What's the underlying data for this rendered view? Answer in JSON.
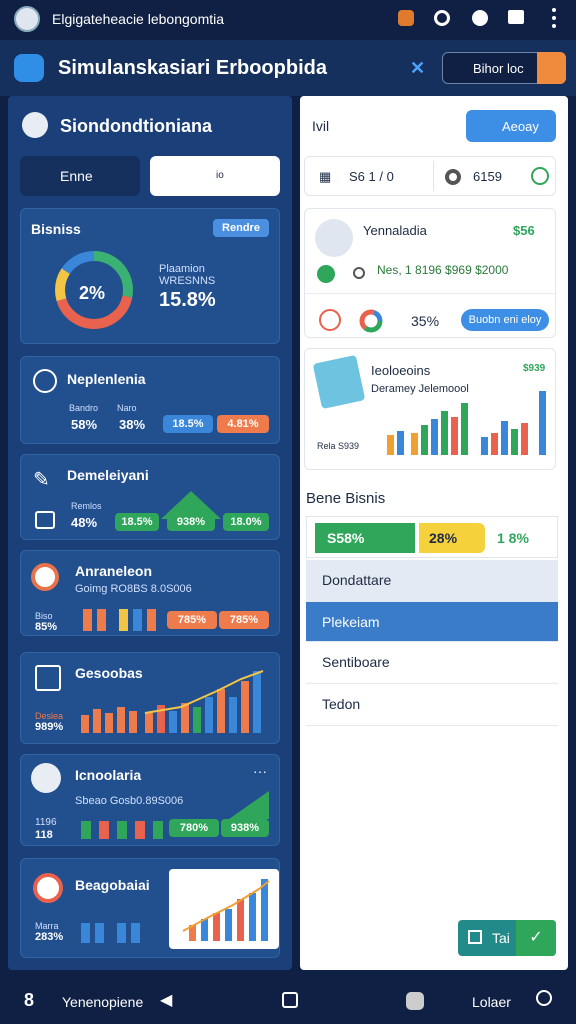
{
  "status_bar": {
    "title": "Elgigateheacie lebongomtia"
  },
  "header": {
    "title": "Simulanskasiari Erboopbida",
    "search": "Bihor loc"
  },
  "left_panel": {
    "title": "Siondondtioniana",
    "tabs": [
      "Enne",
      "io"
    ]
  },
  "cards": [
    {
      "title": "Bisniss",
      "badge": "Rendre",
      "center": "2%",
      "label1": "Plaamion",
      "label2": "WRESNNS",
      "value": "15.8%"
    },
    {
      "title": "Neplenlenia",
      "labels": [
        "Bandro",
        "Naro"
      ],
      "values": [
        "58%",
        "38%",
        "18.5%",
        "4.81%"
      ]
    },
    {
      "title": "Demeleiyani",
      "labels": [
        "Remlos"
      ],
      "values": [
        "48%",
        "18.5%",
        "938%",
        "18.0%"
      ]
    },
    {
      "title": "Anraneleon",
      "subtitle": "Goimg RO8BS 8.0S006",
      "labels": [
        "Biso"
      ],
      "values": [
        "85%",
        "785%",
        "785%"
      ]
    },
    {
      "title": "Gesoobas",
      "labels": [
        "Deslea"
      ],
      "values": [
        "989%"
      ]
    },
    {
      "title": "Icnoolaria",
      "subtitle": "Sbeao Gosb0.89S006",
      "labels": [
        "1196"
      ],
      "values": [
        "118",
        "780%",
        "938%"
      ]
    },
    {
      "title": "Beagobaiai",
      "labels": [
        "Marra"
      ],
      "values": [
        "283%"
      ]
    }
  ],
  "right_panel": {
    "title": "Ivil",
    "button": "Aeoay",
    "stats": [
      "S6 1 / 0",
      "6159"
    ],
    "profile": {
      "name": "Yennaladia",
      "amount": "$56",
      "line": "Nes, 1 8196 $969 $2000",
      "percent": "35%",
      "button": "Buobn eni eloy"
    },
    "chart": {
      "title": "Ieoloeoins",
      "subtitle": "Deramey Jelemoool",
      "amount": "$939",
      "label": "Rela S939"
    },
    "section": "Bene Bisnis",
    "progress": [
      "S58%",
      "28%",
      "1 8%"
    ],
    "list": [
      "Dondattare",
      "Plekeiam",
      "Sentiboare",
      "Tedon"
    ],
    "action": "Tai"
  },
  "bottom_nav": {
    "left": "Yenenopiene",
    "right": "Lolaer"
  }
}
